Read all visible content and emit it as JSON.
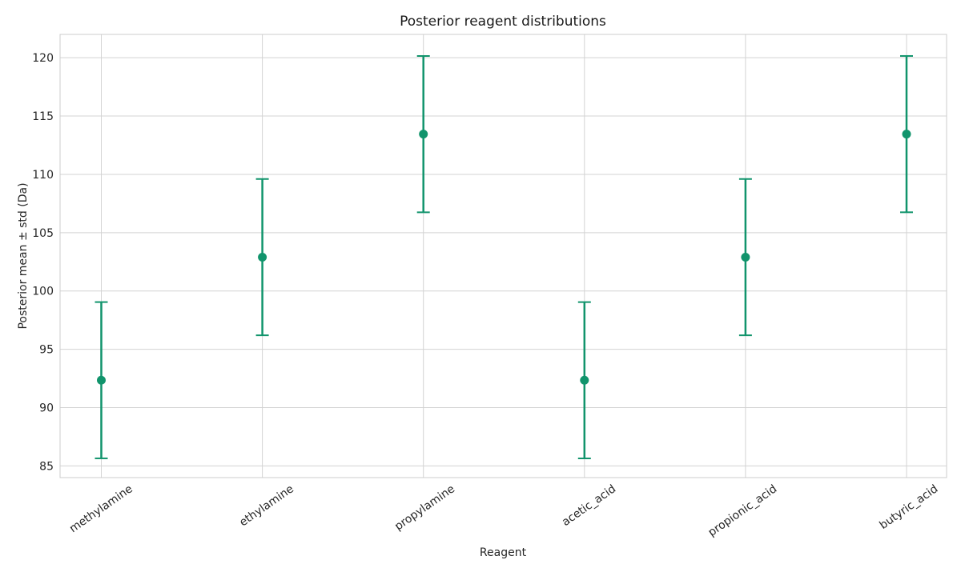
{
  "chart_data": {
    "type": "scatter",
    "title": "Posterior reagent distributions",
    "xlabel": "Reagent",
    "ylabel": "Posterior mean ± std (Da)",
    "categories": [
      "methylamine",
      "ethylamine",
      "propylamine",
      "acetic_acid",
      "propionic_acid",
      "butyric_acid"
    ],
    "means": [
      92.35,
      102.9,
      113.45,
      92.35,
      102.9,
      113.45
    ],
    "std": [
      6.7,
      6.7,
      6.7,
      6.7,
      6.7,
      6.7
    ],
    "ylim": [
      84,
      122
    ],
    "yticks": [
      85,
      90,
      95,
      100,
      105,
      110,
      115,
      120
    ],
    "grid": true,
    "legend": "none",
    "color": "#11946c"
  }
}
